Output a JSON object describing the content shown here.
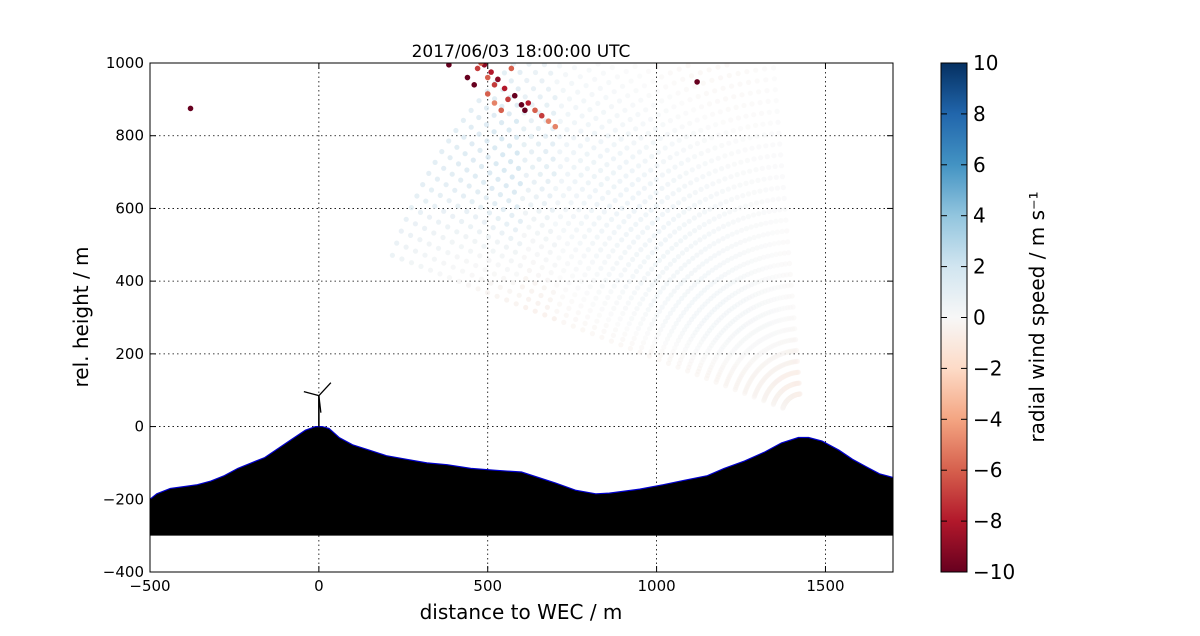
{
  "chart_data": {
    "type": "scatter",
    "title": "2017/06/03 18:00:00 UTC",
    "xlabel": "distance to WEC / m",
    "ylabel": "rel. height / m",
    "xlim": [
      -500,
      1700
    ],
    "ylim": [
      -400,
      1000
    ],
    "x_ticks": [
      "−500",
      "0",
      "500",
      "1000",
      "1500"
    ],
    "y_ticks": [
      "−400",
      "−200",
      "0",
      "200",
      "400",
      "600",
      "800",
      "1000"
    ],
    "grid": true,
    "colorbar": {
      "label": "radial wind speed / m s⁻¹",
      "range": [
        -10,
        10
      ],
      "ticks": [
        "10",
        "8",
        "6",
        "4",
        "2",
        "0",
        "−2",
        "−4",
        "−6",
        "−8",
        "−10"
      ],
      "colormap": "RdBu",
      "colors": [
        "#67001f",
        "#b2182b",
        "#d6604d",
        "#f4a582",
        "#fddbc7",
        "#f7f7f7",
        "#d1e5f0",
        "#92c5de",
        "#4393c3",
        "#2166ac",
        "#053061"
      ]
    },
    "scanner": {
      "x": 1430,
      "y": 30,
      "elev_range_deg": [
        95,
        160
      ],
      "beams": 42,
      "range_m": [
        60,
        1300
      ],
      "gate_step_m": 30
    },
    "wind_turbine": {
      "x": 0,
      "hub_height_m": 85
    },
    "terrain": {
      "x": [
        -500,
        -480,
        -440,
        -400,
        -360,
        -320,
        -280,
        -240,
        -200,
        -160,
        -120,
        -80,
        -40,
        -10,
        10,
        30,
        60,
        100,
        150,
        200,
        260,
        320,
        380,
        450,
        520,
        600,
        650,
        700,
        760,
        820,
        860,
        950,
        1020,
        1080,
        1150,
        1200,
        1260,
        1320,
        1370,
        1420,
        1450,
        1490,
        1540,
        1580,
        1620,
        1660,
        1700
      ],
      "y": [
        -200,
        -185,
        -170,
        -165,
        -160,
        -150,
        -135,
        -115,
        -100,
        -85,
        -60,
        -35,
        -10,
        0,
        0,
        -5,
        -30,
        -50,
        -65,
        -80,
        -90,
        -100,
        -105,
        -115,
        -120,
        -125,
        -140,
        -155,
        -175,
        -185,
        -183,
        -172,
        -160,
        -148,
        -135,
        -115,
        -95,
        -70,
        -45,
        -30,
        -30,
        -40,
        -65,
        -90,
        -110,
        -130,
        -140
      ],
      "base": -300,
      "fill": "#000000",
      "outline": "#0000cc"
    },
    "strong_outliers": [
      {
        "x": -380,
        "y": 875,
        "v": -10
      },
      {
        "x": 1120,
        "y": 948,
        "v": -10
      },
      {
        "x": 385,
        "y": 995,
        "v": -10
      },
      {
        "x": 440,
        "y": 960,
        "v": -10
      },
      {
        "x": 460,
        "y": 940,
        "v": -10
      },
      {
        "x": 490,
        "y": 995,
        "v": -9
      },
      {
        "x": 510,
        "y": 975,
        "v": -8
      },
      {
        "x": 530,
        "y": 955,
        "v": -9
      },
      {
        "x": 550,
        "y": 930,
        "v": -8
      },
      {
        "x": 580,
        "y": 910,
        "v": -10
      },
      {
        "x": 600,
        "y": 885,
        "v": -10
      },
      {
        "x": 470,
        "y": 985,
        "v": -7
      },
      {
        "x": 500,
        "y": 960,
        "v": -6
      },
      {
        "x": 520,
        "y": 940,
        "v": -7
      },
      {
        "x": 560,
        "y": 900,
        "v": -7
      },
      {
        "x": 610,
        "y": 870,
        "v": -10
      },
      {
        "x": 500,
        "y": 915,
        "v": -6
      },
      {
        "x": 520,
        "y": 890,
        "v": -5
      },
      {
        "x": 540,
        "y": 870,
        "v": -6
      },
      {
        "x": 620,
        "y": 890,
        "v": -8
      },
      {
        "x": 640,
        "y": 870,
        "v": -6
      },
      {
        "x": 660,
        "y": 855,
        "v": -7
      },
      {
        "x": 680,
        "y": 840,
        "v": -5
      },
      {
        "x": 700,
        "y": 825,
        "v": -5
      },
      {
        "x": 480,
        "y": 1000,
        "v": -6
      },
      {
        "x": 570,
        "y": 985,
        "v": -6
      }
    ]
  }
}
